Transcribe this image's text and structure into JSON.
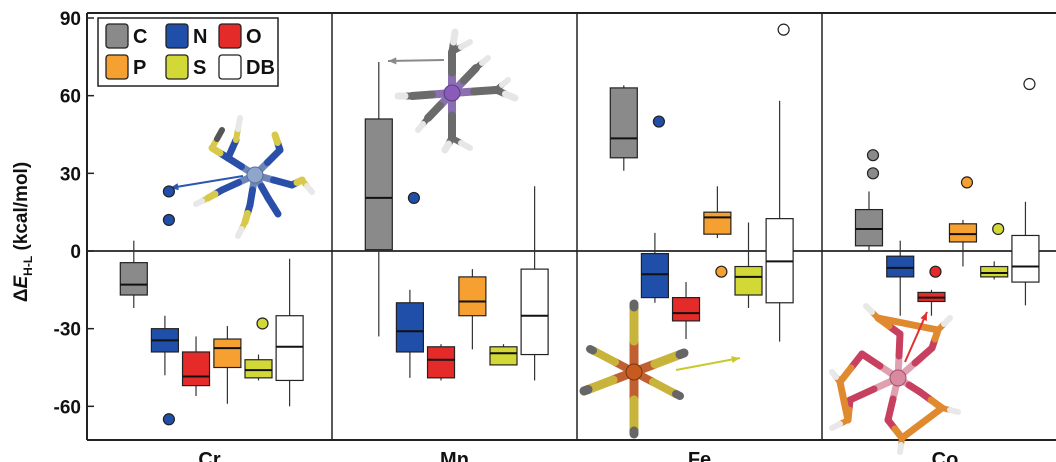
{
  "chart_data": {
    "type": "box",
    "ylabel": {
      "prefix": "Δ",
      "main": "E",
      "subscript": "H-L",
      "unit": " (kcal/mol)"
    },
    "ylim": [
      -73,
      93
    ],
    "yticks": [
      90,
      60,
      30,
      0,
      -30,
      -60
    ],
    "zero_line": true,
    "legend": {
      "placement": "top-left",
      "entries": [
        {
          "key": "C",
          "label": "C",
          "color": "#8a8a8a"
        },
        {
          "key": "N",
          "label": "N",
          "color": "#1f4fa8"
        },
        {
          "key": "O",
          "label": "O",
          "color": "#e52a2a"
        },
        {
          "key": "P",
          "label": "P",
          "color": "#f5a030"
        },
        {
          "key": "S",
          "label": "S",
          "color": "#d2d836"
        },
        {
          "key": "DB",
          "label": "DB",
          "color": "#ffffff"
        }
      ]
    },
    "groups": [
      {
        "name": "Cr",
        "boxes": [
          {
            "series": "C",
            "q1": -17,
            "median": -13,
            "q3": -4.5,
            "whisker_low": -22,
            "whisker_high": 4,
            "outliers": []
          },
          {
            "series": "N",
            "q1": -39,
            "median": -34.5,
            "q3": -30,
            "whisker_low": -48,
            "whisker_high": -25,
            "outliers": [
              23,
              12,
              -65
            ]
          },
          {
            "series": "O",
            "q1": -52,
            "median": -48.5,
            "q3": -39,
            "whisker_low": -56,
            "whisker_high": -33,
            "outliers": []
          },
          {
            "series": "P",
            "q1": -45,
            "median": -37.5,
            "q3": -34,
            "whisker_low": -59,
            "whisker_high": -29,
            "outliers": []
          },
          {
            "series": "S",
            "q1": -49,
            "median": -46,
            "q3": -42,
            "whisker_low": -50,
            "whisker_high": -40,
            "outliers": [
              -28
            ]
          },
          {
            "series": "DB",
            "q1": -50,
            "median": -37,
            "q3": -25,
            "whisker_low": -60,
            "whisker_high": -3,
            "outliers": []
          }
        ]
      },
      {
        "name": "Mn",
        "boxes": [
          {
            "series": "C",
            "q1": 0.5,
            "median": 20.5,
            "q3": 51,
            "whisker_low": -33,
            "whisker_high": 73,
            "outliers": []
          },
          {
            "series": "N",
            "q1": -39,
            "median": -31,
            "q3": -20,
            "whisker_low": -49,
            "whisker_high": -15,
            "outliers": [
              20.5
            ]
          },
          {
            "series": "O",
            "q1": -49,
            "median": -42,
            "q3": -37,
            "whisker_low": -50,
            "whisker_high": -36,
            "outliers": []
          },
          {
            "series": "P",
            "q1": -25,
            "median": -19.5,
            "q3": -10,
            "whisker_low": -38,
            "whisker_high": -7,
            "outliers": []
          },
          {
            "series": "S",
            "q1": -44,
            "median": -39.5,
            "q3": -37,
            "whisker_low": -44,
            "whisker_high": -36,
            "outliers": []
          },
          {
            "series": "DB",
            "q1": -40,
            "median": -25,
            "q3": -7,
            "whisker_low": -50,
            "whisker_high": 25,
            "outliers": []
          }
        ]
      },
      {
        "name": "Fe",
        "boxes": [
          {
            "series": "C",
            "q1": 36,
            "median": 43.5,
            "q3": 63,
            "whisker_low": 31,
            "whisker_high": 64,
            "outliers": []
          },
          {
            "series": "N",
            "q1": -18,
            "median": -9,
            "q3": -1,
            "whisker_low": -20,
            "whisker_high": 7,
            "outliers": [
              50
            ]
          },
          {
            "series": "O",
            "q1": -27,
            "median": -24,
            "q3": -18,
            "whisker_low": -34,
            "whisker_high": -12,
            "outliers": []
          },
          {
            "series": "P",
            "q1": 6.5,
            "median": 13,
            "q3": 15,
            "whisker_low": 5,
            "whisker_high": 25,
            "outliers": [
              -8
            ]
          },
          {
            "series": "S",
            "q1": -17,
            "median": -10,
            "q3": -6,
            "whisker_low": -22,
            "whisker_high": 11,
            "outliers": []
          },
          {
            "series": "DB",
            "q1": -20,
            "median": -4,
            "q3": 12.5,
            "whisker_low": -35,
            "whisker_high": 58,
            "outliers": [
              85.5
            ]
          }
        ]
      },
      {
        "name": "Co",
        "boxes": [
          {
            "series": "C",
            "q1": 2,
            "median": 8.5,
            "q3": 16,
            "whisker_low": 0,
            "whisker_high": 23,
            "outliers": [
              37,
              30
            ]
          },
          {
            "series": "N",
            "q1": -10,
            "median": -6.5,
            "q3": -2,
            "whisker_low": -25,
            "whisker_high": 4,
            "outliers": []
          },
          {
            "series": "O",
            "q1": -19.5,
            "median": -18,
            "q3": -16,
            "whisker_low": -25,
            "whisker_high": -15,
            "outliers": [
              -8
            ]
          },
          {
            "series": "P",
            "q1": 3.5,
            "median": 6.5,
            "q3": 10.5,
            "whisker_low": -6,
            "whisker_high": 12,
            "outliers": [
              26.5
            ]
          },
          {
            "series": "S",
            "q1": -10,
            "median": -8.5,
            "q3": -6,
            "whisker_low": -11,
            "whisker_high": -4,
            "outliers": [
              8.5
            ]
          },
          {
            "series": "DB",
            "q1": -12,
            "median": -6,
            "q3": 6,
            "whisker_low": -21,
            "whisker_high": 19,
            "outliers": [
              64.5
            ]
          }
        ]
      }
    ]
  },
  "insets": [
    {
      "name": "cr-molecule-inset",
      "metal_color": "#8ea6cc",
      "arrow_color": "#2a57b0",
      "label": "Cr N-ligand complex"
    },
    {
      "name": "mn-molecule-inset",
      "metal_color": "#8a5bb8",
      "arrow_color": "#8a8a8a",
      "label": "Mn C-ligand complex"
    },
    {
      "name": "fe-molecule-inset",
      "metal_color": "#c65a1f",
      "arrow_color": "#c9c92e",
      "label": "Fe S-ligand complex"
    },
    {
      "name": "co-molecule-inset",
      "metal_color": "#d98aa0",
      "arrow_color": "#e03030",
      "label": "Co P/O-ligand complex"
    }
  ]
}
